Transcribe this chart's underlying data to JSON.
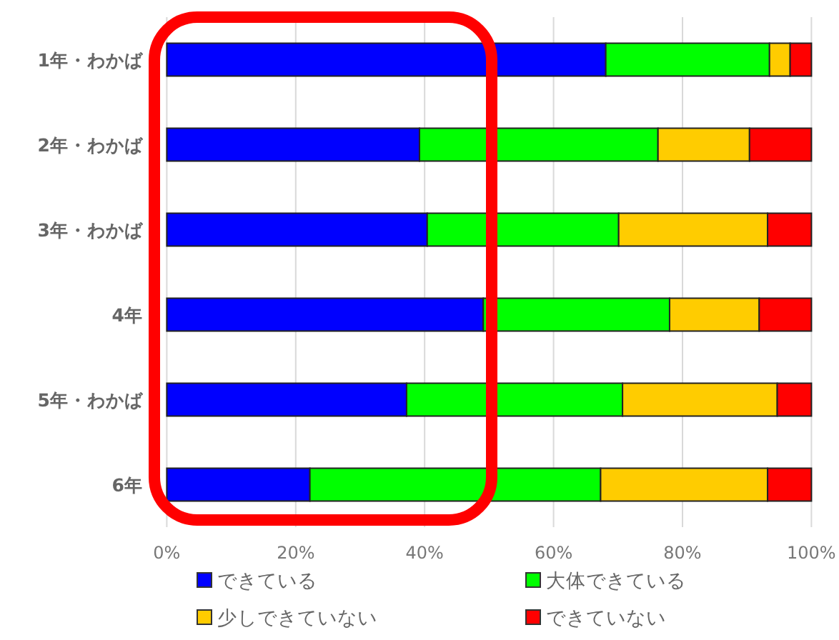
{
  "chart_data": {
    "type": "bar",
    "orientation": "horizontal",
    "stacked": true,
    "categories": [
      "1年・わかば",
      "2年・わかば",
      "3年・わかば",
      "4年",
      "5年・わかば",
      "6年"
    ],
    "series": [
      {
        "name": "できている",
        "color": "#0000ff",
        "values": [
          68.1,
          39.2,
          40.4,
          49.1,
          37.2,
          22.2
        ]
      },
      {
        "name": "大体できている",
        "color": "#00ff00",
        "values": [
          25.4,
          37,
          29.7,
          28.9,
          33.5,
          45.1
        ]
      },
      {
        "name": "少しできていない",
        "color": "#ffcc00",
        "values": [
          3.2,
          14.2,
          23.1,
          13.9,
          24,
          25.9
        ]
      },
      {
        "name": "できていない",
        "color": "#ff0000",
        "values": [
          3.3,
          9.6,
          6.8,
          8.1,
          5.3,
          6.8
        ]
      }
    ],
    "xlim": [
      0,
      100
    ],
    "xticks": [
      {
        "value": 0,
        "label": "0%"
      },
      {
        "value": 20,
        "label": "20%"
      },
      {
        "value": 40,
        "label": "40%"
      },
      {
        "value": 60,
        "label": "60%"
      },
      {
        "value": 80,
        "label": "80%"
      },
      {
        "value": 100,
        "label": "100%"
      }
    ],
    "grid": "x",
    "legend": "bottom"
  }
}
